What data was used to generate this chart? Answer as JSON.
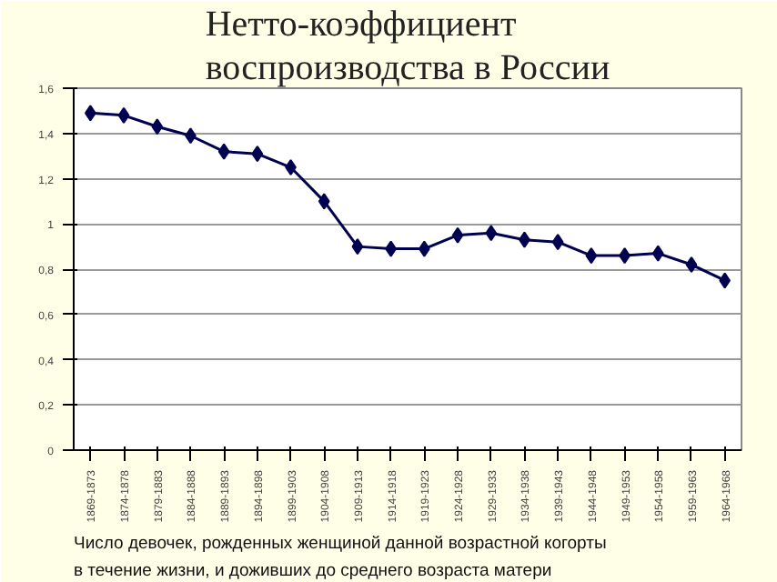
{
  "chart_data": {
    "type": "line",
    "title": "Нетто-коэффициент\nвоспроизводства в России",
    "categories": [
      "1869-1873",
      "1874-1878",
      "1879-1883",
      "1884-1888",
      "1889-1893",
      "1894-1898",
      "1899-1903",
      "1904-1908",
      "1909-1913",
      "1914-1918",
      "1919-1923",
      "1924-1928",
      "1929-1933",
      "1934-1938",
      "1939-1943",
      "1944-1948",
      "1949-1953",
      "1954-1958",
      "1959-1963",
      "1964-1968"
    ],
    "series": [
      {
        "color": "#000050",
        "values": [
          1.49,
          1.48,
          1.43,
          1.39,
          1.32,
          1.31,
          1.25,
          1.1,
          0.9,
          0.89,
          0.89,
          0.95,
          0.96,
          0.93,
          0.92,
          0.86,
          0.86,
          0.87,
          0.82,
          0.75
        ]
      }
    ],
    "ylim": [
      0,
      1.6
    ],
    "yticks": [
      0,
      {
        "value": 0.2,
        "label": "0,2"
      },
      {
        "value": 0.4,
        "label": "0,4"
      },
      {
        "value": 0.6,
        "label": "0,6"
      },
      {
        "value": 0.8,
        "label": "0,8"
      },
      1,
      {
        "value": 1.2,
        "label": "1,2"
      },
      {
        "value": 1.4,
        "label": "1,4"
      },
      {
        "value": 1.6,
        "label": "1,6"
      }
    ],
    "grid": "y",
    "marker": "diamond",
    "line_style": "solid",
    "annotations": [
      "Число девочек, рожденных женщиной данной возрастной когорты\nв течение жизни, и доживших до среднего возраста матери"
    ]
  }
}
